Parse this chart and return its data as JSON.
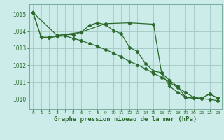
{
  "title": "Graphe pression niveau de la mer (hPa)",
  "background_color": "#ccecea",
  "grid_color": "#a8ceca",
  "line_color": "#2d6a2d",
  "xlim": [
    -0.5,
    23.5
  ],
  "ylim": [
    1009.4,
    1015.6
  ],
  "yticks": [
    1010,
    1011,
    1012,
    1013,
    1014,
    1015
  ],
  "xticks": [
    0,
    1,
    2,
    3,
    4,
    5,
    6,
    7,
    8,
    9,
    10,
    11,
    12,
    13,
    14,
    15,
    16,
    17,
    18,
    19,
    20,
    21,
    22,
    23
  ],
  "series1_x": [
    0,
    1,
    2,
    3,
    4,
    5,
    6,
    7,
    8,
    9,
    10,
    11,
    12,
    13,
    14,
    15,
    16,
    17,
    18,
    19,
    20,
    21,
    22,
    23
  ],
  "series1_y": [
    1015.1,
    1013.65,
    1013.65,
    1013.75,
    1013.8,
    1013.8,
    1013.95,
    1014.35,
    1014.5,
    1014.4,
    1014.05,
    1013.85,
    1013.05,
    1012.8,
    1012.1,
    1011.65,
    1011.55,
    1011.1,
    1010.75,
    1010.1,
    1010.05,
    1010.05,
    1010.3,
    1010.05
  ],
  "series2_x": [
    0,
    1,
    2,
    3,
    4,
    5,
    6,
    7,
    8,
    9,
    10,
    11,
    12,
    13,
    14,
    15,
    16,
    17,
    18,
    19,
    20,
    21,
    22,
    23
  ],
  "series2_y": [
    1015.1,
    1013.65,
    1013.6,
    1013.7,
    1013.72,
    1013.58,
    1013.45,
    1013.28,
    1013.12,
    1012.92,
    1012.72,
    1012.48,
    1012.22,
    1012.02,
    1011.78,
    1011.52,
    1011.28,
    1010.98,
    1010.68,
    1010.38,
    1010.1,
    1010.02,
    1009.98,
    1009.9
  ],
  "series3_x": [
    0,
    3,
    6,
    9,
    12,
    15,
    16,
    17,
    18,
    19,
    20,
    21,
    22,
    23
  ],
  "series3_y": [
    1015.1,
    1013.75,
    1013.95,
    1014.45,
    1014.5,
    1014.42,
    1011.55,
    1010.75,
    1010.4,
    1010.1,
    1010.05,
    1010.05,
    1010.3,
    1010.05
  ]
}
